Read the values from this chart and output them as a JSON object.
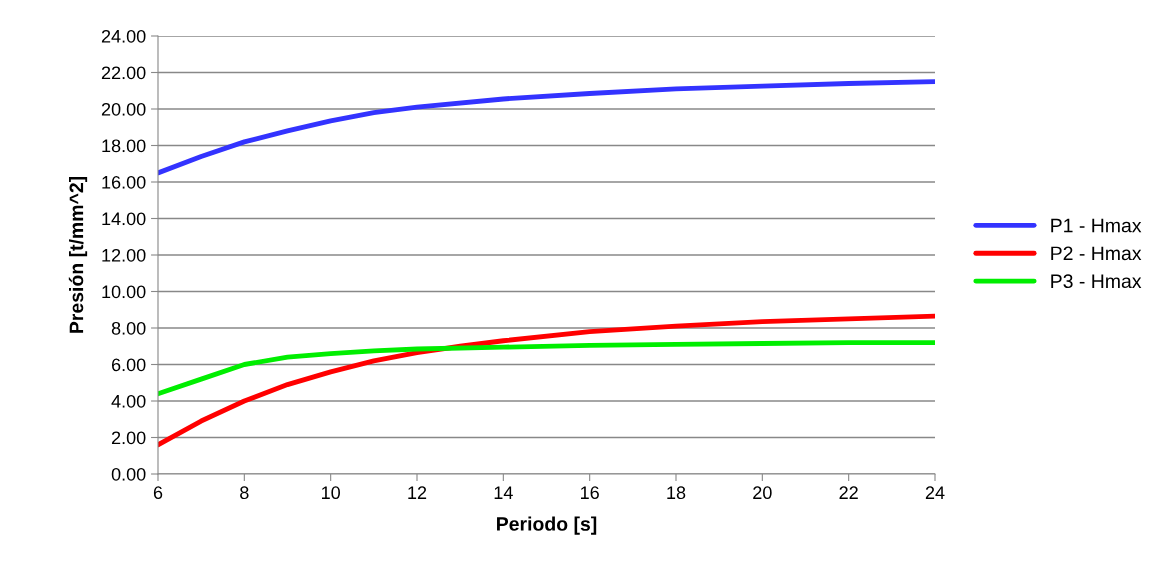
{
  "chart_data": {
    "type": "line",
    "xlabel": "Periodo [s]",
    "ylabel": "Presión [t/mm^2]",
    "xlim": [
      6,
      24
    ],
    "xticks": [
      6,
      8,
      10,
      12,
      14,
      16,
      18,
      20,
      22,
      24
    ],
    "ylim": [
      0,
      24
    ],
    "yticks": [
      {
        "value": 0,
        "label": "0.00"
      },
      {
        "value": 2,
        "label": "2.00"
      },
      {
        "value": 4,
        "label": "4.00"
      },
      {
        "value": 6,
        "label": "6.00"
      },
      {
        "value": 8,
        "label": "8.00"
      },
      {
        "value": 10,
        "label": "10.00"
      },
      {
        "value": 12,
        "label": "12.00"
      },
      {
        "value": 14,
        "label": "14.00"
      },
      {
        "value": 16,
        "label": "16.00"
      },
      {
        "value": 18,
        "label": "18.00"
      },
      {
        "value": 20,
        "label": "20.00"
      },
      {
        "value": 22,
        "label": "22.00"
      },
      {
        "value": 24,
        "label": "24.00"
      }
    ],
    "grid": "y",
    "legend": "right",
    "marker": "none",
    "line_style": "solid",
    "series": [
      {
        "name": "P1 - Hmax",
        "color": "#3333ff",
        "x": [
          6,
          7,
          8,
          9,
          10,
          11,
          12,
          14,
          16,
          18,
          20,
          22,
          24
        ],
        "values": [
          16.5,
          17.4,
          18.2,
          18.8,
          19.35,
          19.8,
          20.1,
          20.55,
          20.85,
          21.1,
          21.25,
          21.4,
          21.5
        ]
      },
      {
        "name": "P2 - Hmax",
        "color": "#ff0000",
        "x": [
          6,
          7,
          8,
          9,
          10,
          11,
          12,
          13,
          14,
          16,
          18,
          20,
          22,
          24
        ],
        "values": [
          1.6,
          2.9,
          4.0,
          4.9,
          5.6,
          6.2,
          6.65,
          7.0,
          7.3,
          7.8,
          8.1,
          8.35,
          8.5,
          8.65
        ]
      },
      {
        "name": "P3 - Hmax",
        "color": "#00ee00",
        "x": [
          6,
          7,
          8,
          9,
          10,
          11,
          12,
          14,
          16,
          18,
          20,
          22,
          24
        ],
        "values": [
          4.4,
          5.2,
          6.0,
          6.4,
          6.6,
          6.75,
          6.85,
          6.95,
          7.05,
          7.1,
          7.15,
          7.2,
          7.2
        ]
      }
    ]
  }
}
